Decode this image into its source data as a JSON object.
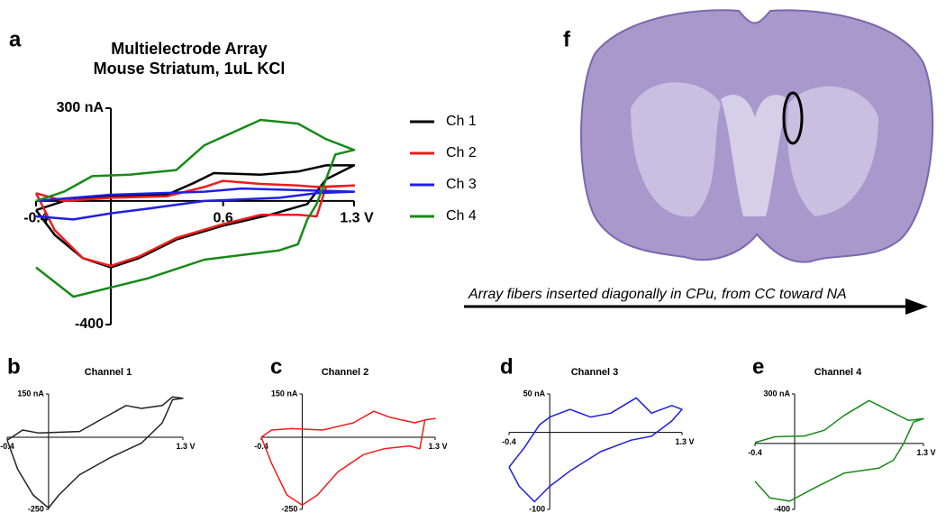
{
  "chart_data": [
    {
      "type": "line",
      "panel": "a",
      "title": "Multielectrode Array",
      "subtitle": "Mouse Striatum, 1uL KCl",
      "xlim": [
        -0.4,
        1.3
      ],
      "xticks": [
        -0.4,
        0.6,
        {
          "value": 1.3,
          "label": "1.3 V"
        }
      ],
      "ylim": [
        -400,
        300
      ],
      "yticks": [
        {
          "value": 300,
          "label": "300 nA"
        },
        -400
      ],
      "series": [
        {
          "name": "Ch 1",
          "color": "#000000",
          "x": [
            -0.4,
            -0.25,
            0,
            0.3,
            0.45,
            0.55,
            0.8,
            1.0,
            1.15,
            1.3,
            1.15,
            1.05,
            0.85,
            0.6,
            0.35,
            0.15,
            0.0,
            -0.15,
            -0.3,
            -0.4
          ],
          "values": [
            -30,
            0,
            15,
            20,
            60,
            90,
            85,
            95,
            115,
            115,
            70,
            -10,
            -45,
            -80,
            -125,
            -185,
            -215,
            -185,
            -110,
            -30
          ]
        },
        {
          "name": "Ch 2",
          "color": "#ee1c1c",
          "x": [
            -0.4,
            -0.25,
            0,
            0.3,
            0.5,
            0.6,
            0.8,
            1.0,
            1.1,
            1.3,
            1.15,
            1.1,
            1.0,
            0.8,
            0.6,
            0.35,
            0.15,
            0.0,
            -0.15,
            -0.3,
            -0.4
          ],
          "values": [
            25,
            0,
            10,
            15,
            45,
            65,
            55,
            50,
            45,
            50,
            45,
            -50,
            -45,
            -45,
            -75,
            -120,
            -180,
            -210,
            -185,
            -95,
            25
          ]
        },
        {
          "name": "Ch 3",
          "color": "#1f1fe0",
          "x": [
            -0.4,
            -0.2,
            0,
            0.5,
            0.7,
            1.0,
            1.3,
            1.1,
            0.9,
            0.5,
            0.2,
            0,
            -0.2,
            -0.4
          ],
          "values": [
            0,
            10,
            20,
            30,
            40,
            35,
            30,
            25,
            10,
            0,
            -25,
            -40,
            -60,
            -50
          ]
        },
        {
          "name": "Ch 4",
          "color": "#178a17",
          "x": [
            -0.4,
            -0.2,
            0.2,
            0.5,
            0.9,
            1.0,
            1.05,
            1.1,
            1.2,
            1.3,
            1.15,
            1.0,
            0.8,
            0.5,
            0.35,
            0.1,
            -0.1,
            -0.25,
            -0.4
          ],
          "values": [
            -215,
            -310,
            -250,
            -190,
            -160,
            -140,
            -60,
            -10,
            150,
            165,
            200,
            250,
            262,
            180,
            100,
            85,
            80,
            30,
            0
          ]
        }
      ]
    },
    {
      "type": "line",
      "panel": "b",
      "title": "Channel 1",
      "xlim": [
        -0.4,
        1.3
      ],
      "xticks": [
        -0.4,
        {
          "value": 1.3,
          "label": "1.3 V"
        }
      ],
      "ylim": [
        -250,
        150
      ],
      "yticks": [
        {
          "value": 150,
          "label": "150 nA"
        },
        -250
      ],
      "series": [
        {
          "color": "#222222",
          "x": [
            -0.4,
            -0.25,
            -0.1,
            0.3,
            0.6,
            0.75,
            0.9,
            1.1,
            1.2,
            1.3,
            1.2,
            1.1,
            0.9,
            0.6,
            0.3,
            0.1,
            0.0,
            -0.15,
            -0.3,
            -0.4
          ],
          "values": [
            -10,
            25,
            15,
            20,
            80,
            110,
            100,
            110,
            140,
            135,
            130,
            50,
            -20,
            -70,
            -130,
            -200,
            -245,
            -200,
            -110,
            -10
          ]
        }
      ]
    },
    {
      "type": "line",
      "panel": "c",
      "title": "Channel 2",
      "xlim": [
        -0.4,
        1.3
      ],
      "xticks": [
        -0.4,
        {
          "value": 1.3,
          "label": "1.3 V"
        }
      ],
      "ylim": [
        -250,
        150
      ],
      "yticks": [
        {
          "value": 150,
          "label": "150 nA"
        },
        -250
      ],
      "series": [
        {
          "color": "#ee1c1c",
          "x": [
            -0.4,
            -0.3,
            -0.1,
            0.2,
            0.5,
            0.7,
            0.85,
            1.1,
            1.2,
            1.3,
            1.2,
            1.15,
            1.05,
            0.8,
            0.6,
            0.35,
            0.15,
            0.0,
            -0.15,
            -0.3,
            -0.4
          ],
          "values": [
            0,
            25,
            30,
            25,
            50,
            90,
            70,
            50,
            60,
            65,
            60,
            -40,
            -30,
            -40,
            -60,
            -120,
            -200,
            -235,
            -200,
            -90,
            0
          ]
        }
      ]
    },
    {
      "type": "line",
      "panel": "d",
      "title": "Channel 3",
      "xlim": [
        -0.4,
        1.3
      ],
      "xticks": [
        -0.4,
        {
          "value": 1.3,
          "label": "1.3 V"
        }
      ],
      "ylim": [
        -100,
        50
      ],
      "yticks": [
        {
          "value": 50,
          "label": "50 nA"
        },
        -100
      ],
      "series": [
        {
          "color": "#1f1fe0",
          "x": [
            -0.4,
            -0.25,
            -0.1,
            0.0,
            0.2,
            0.4,
            0.6,
            0.85,
            1.0,
            1.2,
            1.3,
            1.2,
            1.1,
            1.0,
            0.8,
            0.5,
            0.2,
            0.0,
            -0.15,
            -0.3,
            -0.4
          ],
          "values": [
            -45,
            -20,
            10,
            20,
            30,
            20,
            25,
            45,
            25,
            35,
            30,
            15,
            5,
            -5,
            -10,
            -25,
            -50,
            -70,
            -90,
            -70,
            -45
          ]
        }
      ]
    },
    {
      "type": "line",
      "panel": "e",
      "title": "Channel 4",
      "xlim": [
        -0.4,
        1.3
      ],
      "xticks": [
        -0.4,
        {
          "value": 1.3,
          "label": "1.3 V"
        }
      ],
      "ylim": [
        -400,
        300
      ],
      "yticks": [
        {
          "value": 300,
          "label": "300 nA"
        },
        -400
      ],
      "series": [
        {
          "color": "#178a17",
          "x": [
            -0.4,
            -0.2,
            0.1,
            0.3,
            0.5,
            0.75,
            0.95,
            1.15,
            1.3,
            1.2,
            1.1,
            1.0,
            0.85,
            0.5,
            0.2,
            -0.05,
            -0.25,
            -0.4
          ],
          "values": [
            5,
            40,
            45,
            80,
            170,
            260,
            200,
            140,
            150,
            130,
            0,
            -100,
            -150,
            -180,
            -270,
            -350,
            -330,
            -230
          ]
        }
      ]
    }
  ],
  "image": {
    "panel": "f",
    "caption": "Array fibers inserted diagonally in CPu, from CC toward NA"
  }
}
